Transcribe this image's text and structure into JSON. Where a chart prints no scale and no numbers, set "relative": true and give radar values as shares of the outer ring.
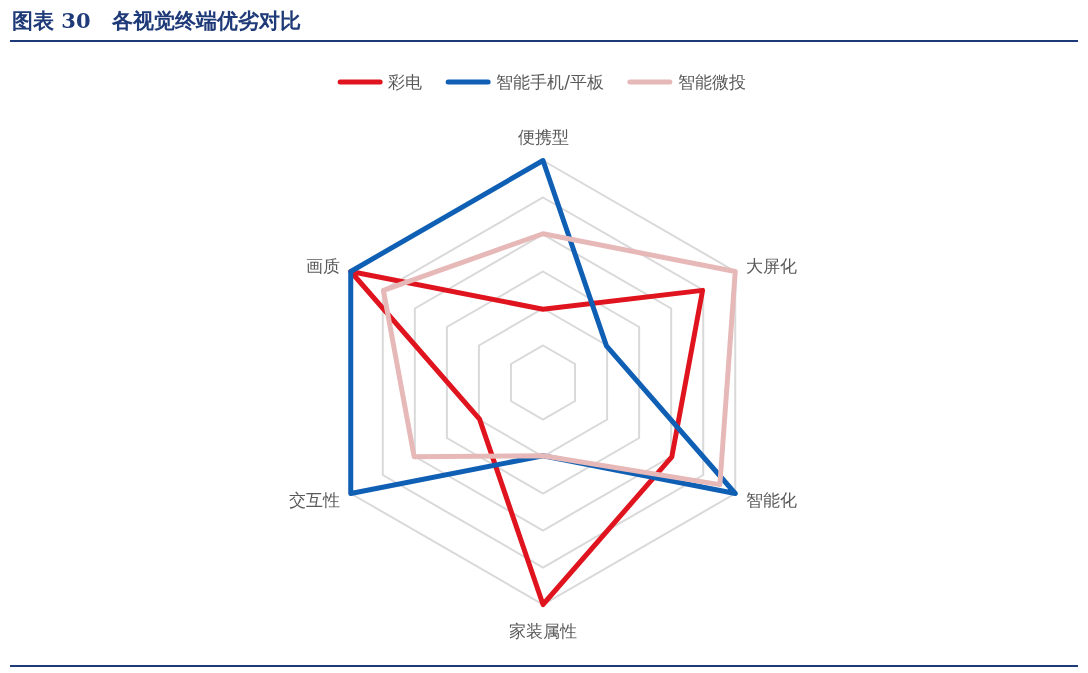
{
  "chart_data": {
    "type": "radar",
    "title": "图表 30　各视觉终端优劣对比",
    "categories": [
      "便携型",
      "大屏化",
      "智能化",
      "家装属性",
      "交互性",
      "画质"
    ],
    "relative": true,
    "legend": "top",
    "series": [
      {
        "name": "彩电",
        "color": "#e0141e",
        "values": [
          0.33,
          0.83,
          0.67,
          1,
          0.33,
          1
        ]
      },
      {
        "name": "智能手机/平板",
        "color": "#0f5fb4",
        "values": [
          1,
          0.33,
          1,
          0.33,
          1,
          1
        ]
      },
      {
        "name": "智能微投",
        "color": "#e6b9b8",
        "values": [
          0.67,
          1,
          0.92,
          0.33,
          0.67,
          0.83
        ]
      }
    ]
  }
}
